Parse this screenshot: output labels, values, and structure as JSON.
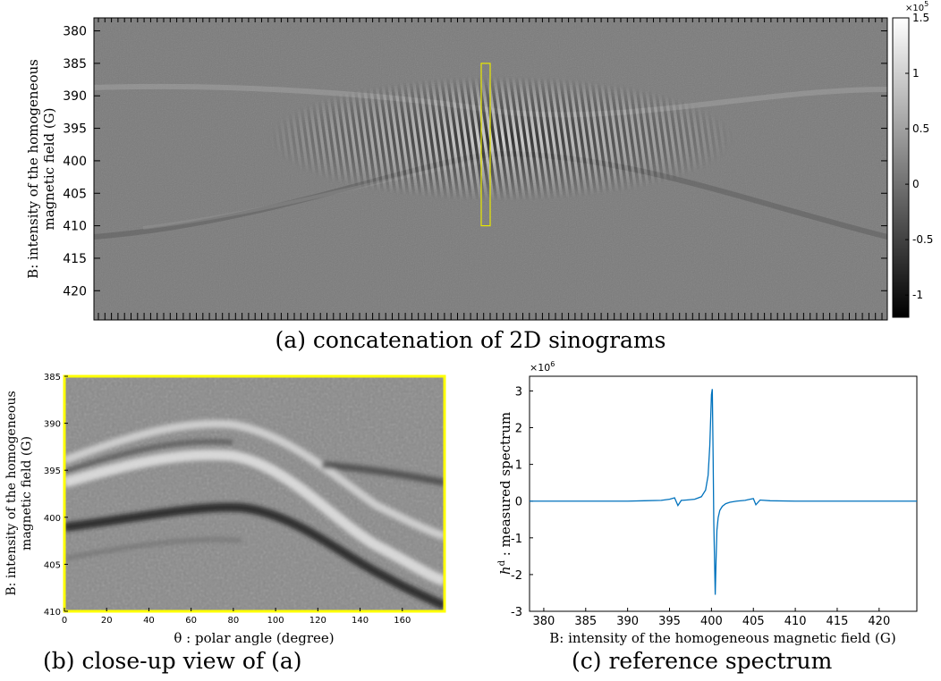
{
  "captions": {
    "a": "(a) concatenation of 2D sinograms",
    "b": "(b) close-up view of (a)",
    "c": "(c) reference spectrum"
  },
  "chart_data": [
    {
      "id": "a",
      "type": "heatmap",
      "title": "",
      "ylabel_line1": "B: intensity of the homogeneous",
      "ylabel_line2": "magnetic field (G)",
      "y_ticks": [
        380,
        385,
        390,
        395,
        400,
        405,
        410,
        415,
        420
      ],
      "ylim": [
        378,
        424.5
      ],
      "y_reversed": true,
      "highlight_box": {
        "y_from": 385,
        "y_to": 410,
        "color": "#e8e800"
      },
      "colorbar": {
        "ticks": [
          1.5,
          1,
          0.5,
          0,
          -0.5,
          -1
        ],
        "tick_labels": [
          "1.5",
          "1",
          "0.5",
          "0",
          "-0.5",
          "-1"
        ],
        "range": [
          -1.2,
          1.5
        ],
        "multiplier": "×10",
        "exponent": "5",
        "colormap": "gray"
      }
    },
    {
      "id": "b",
      "type": "heatmap",
      "title": "",
      "xlabel": "θ : polar angle (degree)",
      "ylabel_line1": "B: intensity of the homogeneous",
      "ylabel_line2": "magnetic field (G)",
      "x_ticks": [
        0,
        20,
        40,
        60,
        80,
        100,
        120,
        140,
        160
      ],
      "xlim": [
        0,
        180
      ],
      "y_ticks": [
        385,
        390,
        395,
        400,
        405,
        410
      ],
      "ylim": [
        385,
        410
      ],
      "y_reversed": true,
      "frame_color": "#ffff00",
      "colormap": "gray"
    },
    {
      "id": "c",
      "type": "line",
      "title": "",
      "xlabel": "B: intensity of the homogeneous magnetic field (G)",
      "ylabel_main": "h",
      "ylabel_sup": "d",
      "ylabel_rest": " : measured spectrum",
      "multiplier": "×10",
      "exponent": "6",
      "x_ticks": [
        380,
        385,
        390,
        395,
        400,
        405,
        410,
        415,
        420
      ],
      "xlim": [
        378.3,
        424.5
      ],
      "y_ticks": [
        3,
        2,
        1,
        0,
        -1,
        -2,
        -3
      ],
      "ylim": [
        -3,
        3.4
      ],
      "line_color": "#0072bd",
      "series": [
        {
          "x": [
            378.3,
            382,
            386,
            390,
            392,
            394,
            395,
            395.6,
            396,
            396.4,
            397,
            398,
            398.8,
            399.3,
            399.6,
            399.8,
            400.0,
            400.1,
            400.2,
            400.28,
            400.35,
            400.45,
            400.55,
            400.65,
            400.8,
            401.0,
            401.3,
            401.7,
            402.2,
            403,
            404,
            404.6,
            405,
            405.3,
            405.8,
            407,
            410,
            415,
            420,
            424.5
          ],
          "y": [
            0,
            0,
            0,
            0,
            0.01,
            0.02,
            0.05,
            0.09,
            -0.12,
            0.02,
            0.03,
            0.05,
            0.12,
            0.3,
            0.7,
            1.5,
            2.9,
            3.05,
            1.2,
            -0.6,
            -1.4,
            -2.55,
            -1.6,
            -0.8,
            -0.45,
            -0.25,
            -0.14,
            -0.07,
            -0.03,
            0,
            0.02,
            0.05,
            0.07,
            -0.1,
            0.03,
            0.01,
            0,
            0,
            0,
            0
          ]
        }
      ]
    }
  ]
}
